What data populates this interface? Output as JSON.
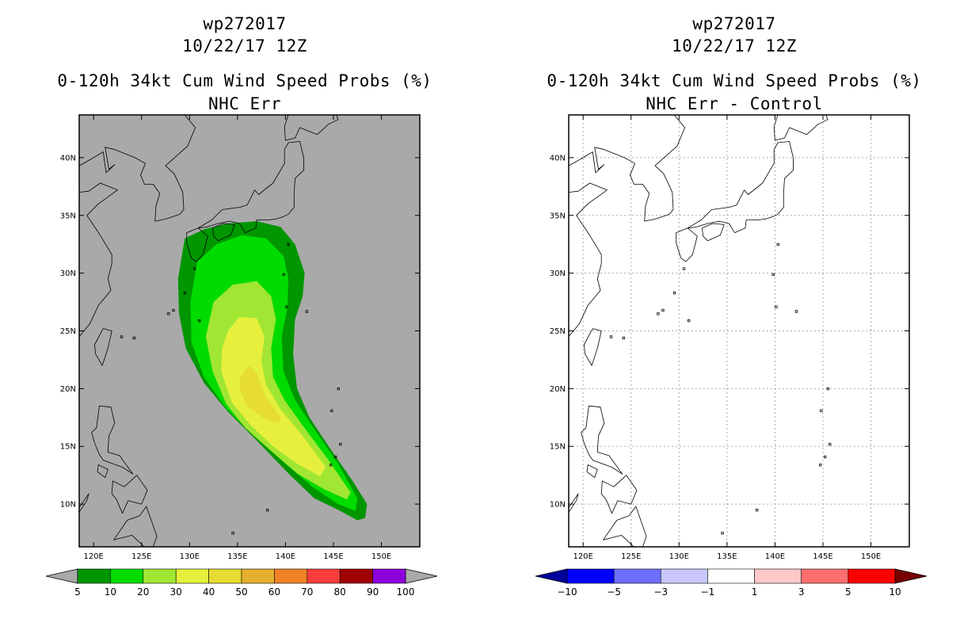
{
  "chart_data": [
    {
      "type": "heatmap",
      "storm_id": "wp272017",
      "date": "10/22/17 12Z",
      "title": "0-120h 34kt Cum Wind Speed Probs (%)",
      "subtitle": "NHC Err",
      "x_ticks": [
        "120E",
        "125E",
        "130E",
        "135E",
        "140E",
        "145E",
        "150E"
      ],
      "y_ticks": [
        "10N",
        "15N",
        "20N",
        "25N",
        "30N",
        "35N",
        "40N"
      ],
      "lon_range": [
        118.5,
        154
      ],
      "lat_range": [
        6.3,
        43.7
      ],
      "grid": false,
      "background": "#a9a9a9",
      "colorbar": {
        "labels": [
          "5",
          "10",
          "20",
          "30",
          "40",
          "50",
          "60",
          "70",
          "80",
          "90",
          "100"
        ],
        "colors": [
          "#009600",
          "#00dc00",
          "#a0e632",
          "#e6f03c",
          "#e6dc32",
          "#e6af2d",
          "#f08228",
          "#fa3c3c",
          "#a00000",
          "#8c00dc"
        ],
        "end_colors": [
          "#a9a9a9",
          "#a9a9a9"
        ]
      },
      "prob_levels": [
        {
          "min": 5,
          "max": 10,
          "color": "#009600"
        },
        {
          "min": 10,
          "max": 20,
          "color": "#00dc00"
        },
        {
          "min": 20,
          "max": 30,
          "color": "#a0e632"
        },
        {
          "min": 30,
          "max": 40,
          "color": "#e6f03c"
        },
        {
          "min": 40,
          "max": 50,
          "color": "#e6dc32"
        }
      ]
    },
    {
      "type": "heatmap",
      "storm_id": "wp272017",
      "date": "10/22/17 12Z",
      "title": "0-120h 34kt Cum Wind Speed Probs (%)",
      "subtitle": "NHC Err - Control",
      "x_ticks": [
        "120E",
        "125E",
        "130E",
        "135E",
        "140E",
        "145E",
        "150E"
      ],
      "y_ticks": [
        "10N",
        "15N",
        "20N",
        "25N",
        "30N",
        "35N",
        "40N"
      ],
      "lon_range": [
        118.5,
        154
      ],
      "lat_range": [
        6.3,
        43.7
      ],
      "grid": true,
      "background": "#ffffff",
      "colorbar": {
        "labels": [
          "-10",
          "-5",
          "-3",
          "-1",
          "1",
          "3",
          "5",
          "10"
        ],
        "colors": [
          "#0000ff",
          "#6e6eff",
          "#c8c8ff",
          "#ffffff",
          "#ffc8c8",
          "#ff6e6e",
          "#ff0000"
        ],
        "end_colors": [
          "#00009b",
          "#780000"
        ]
      },
      "prob_levels": []
    }
  ]
}
